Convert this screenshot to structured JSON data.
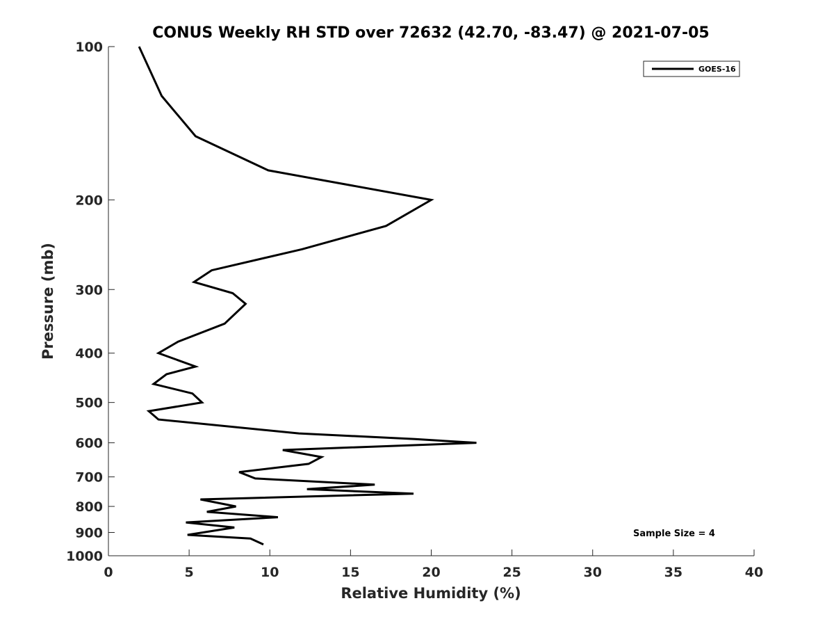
{
  "chart_data": {
    "type": "line",
    "title": "CONUS Weekly RH STD over 72632 (42.70, -83.47) @ 2021-07-05",
    "xlabel": "Relative Humidity (%)",
    "ylabel": "Pressure (mb)",
    "xlim": [
      0,
      40
    ],
    "ylim": [
      100,
      1000
    ],
    "yscale": "log",
    "yreversed": true,
    "xticks": [
      "0",
      "5",
      "10",
      "15",
      "20",
      "25",
      "30",
      "35",
      "40"
    ],
    "yticks": [
      "100",
      "200",
      "300",
      "400",
      "500",
      "600",
      "700",
      "800",
      "900",
      "1000"
    ],
    "legend_position": "top-right",
    "annotation": "Sample Size = 4",
    "series": [
      {
        "name": "GOES-16",
        "color": "#000000",
        "points": [
          [
            1.9,
            100
          ],
          [
            3.3,
            125
          ],
          [
            5.4,
            150
          ],
          [
            9.9,
            175
          ],
          [
            20.0,
            200
          ],
          [
            17.2,
            225
          ],
          [
            12.0,
            250
          ],
          [
            6.4,
            275
          ],
          [
            5.3,
            290
          ],
          [
            7.7,
            305
          ],
          [
            8.5,
            320
          ],
          [
            7.2,
            350
          ],
          [
            4.3,
            380
          ],
          [
            3.1,
            400
          ],
          [
            5.4,
            425
          ],
          [
            3.6,
            440
          ],
          [
            2.8,
            460
          ],
          [
            5.2,
            480
          ],
          [
            5.8,
            500
          ],
          [
            2.5,
            520
          ],
          [
            3.1,
            540
          ],
          [
            11.8,
            575
          ],
          [
            19.0,
            590
          ],
          [
            22.8,
            600
          ],
          [
            10.8,
            620
          ],
          [
            13.2,
            640
          ],
          [
            12.4,
            660
          ],
          [
            8.1,
            685
          ],
          [
            9.1,
            705
          ],
          [
            16.5,
            725
          ],
          [
            12.3,
            740
          ],
          [
            18.9,
            755
          ],
          [
            5.7,
            775
          ],
          [
            7.9,
            800
          ],
          [
            6.1,
            820
          ],
          [
            10.5,
            840
          ],
          [
            4.8,
            860
          ],
          [
            7.8,
            880
          ],
          [
            4.9,
            910
          ],
          [
            8.8,
            925
          ],
          [
            9.6,
            950
          ]
        ]
      }
    ]
  }
}
